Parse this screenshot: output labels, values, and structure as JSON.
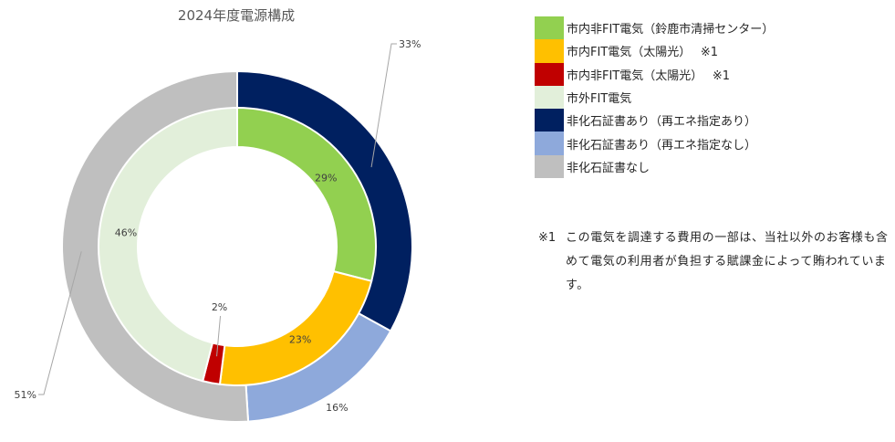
{
  "chart_data": {
    "type": "donut",
    "title": "2024年度電源構成",
    "rings": [
      {
        "name": "",
        "position": "outer",
        "slices": [
          {
            "category": "非化石証書あり（再エネ指定あり）",
            "value": 33,
            "label": "33%",
            "color": "#002060"
          },
          {
            "category": "非化石証書あり（再エネ指定なし）",
            "value": 16,
            "label": "16%",
            "color": "#8EA9DB"
          },
          {
            "category": "非化石証書なし",
            "value": 51,
            "label": "51%",
            "color": "#BFBFBF"
          }
        ]
      },
      {
        "name": "",
        "position": "inner",
        "slices": [
          {
            "category": "市内非FIT電気（鈴鹿市清掃センター）",
            "value": 29,
            "label": "29%",
            "color": "#92D050"
          },
          {
            "category": "市内FIT電気（太陽光）　※1",
            "value": 23,
            "label": "23%",
            "color": "#FFC000"
          },
          {
            "category": "市内非FIT電気（太陽光）　※1",
            "value": 2,
            "label": "2%",
            "color": "#C00000"
          },
          {
            "category": "市外FIT電気",
            "value": 46,
            "label": "46%",
            "color": "#E2EFDA"
          }
        ]
      }
    ],
    "legend_position": "right",
    "legend": [
      {
        "label": "市内非FIT電気（鈴鹿市清掃センター）",
        "color": "#92D050"
      },
      {
        "label": "市内FIT電気（太陽光）　 ※1",
        "color": "#FFC000"
      },
      {
        "label": "市内非FIT電気（太陽光）　 ※1",
        "color": "#C00000"
      },
      {
        "label": "市外FIT電気",
        "color": "#E2EFDA"
      },
      {
        "label": "非化石証書あり（再エネ指定あり）",
        "color": "#002060"
      },
      {
        "label": "非化石証書あり（再エネ指定なし）",
        "color": "#8EA9DB"
      },
      {
        "label": "非化石証書なし",
        "color": "#BFBFBF"
      }
    ]
  },
  "note": {
    "mark": "※1",
    "text": "この電気を調達する費用の一部は、当社以外のお客様も含めて電気の利用者が負担する賦課金によって賄われています。"
  }
}
